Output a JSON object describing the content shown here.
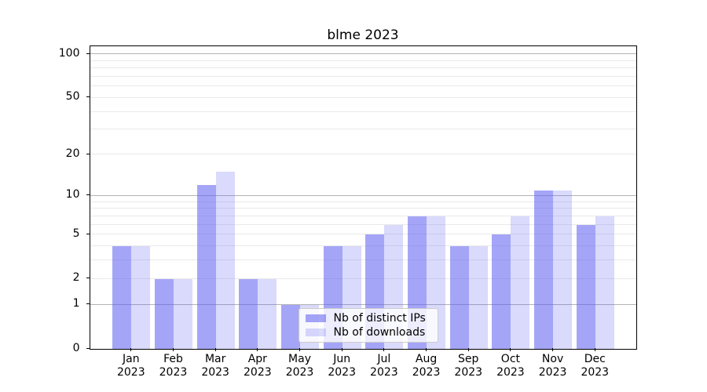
{
  "title": "blme 2023",
  "chart_data": {
    "type": "bar",
    "title": "blme 2023",
    "categories": [
      "Jan 2023",
      "Feb 2023",
      "Mar 2023",
      "Apr 2023",
      "May 2023",
      "Jun 2023",
      "Jul 2023",
      "Aug 2023",
      "Sep 2023",
      "Oct 2023",
      "Nov 2023",
      "Dec 2023"
    ],
    "series": [
      {
        "name": "Nb of distinct IPs",
        "color": "rgba(95,95,240,0.56)",
        "values": [
          4,
          2,
          12,
          2,
          1,
          4,
          5,
          7,
          4,
          5,
          11,
          6
        ]
      },
      {
        "name": "Nb of downloads",
        "color": "rgba(95,95,240,0.23)",
        "values": [
          4,
          2,
          15,
          2,
          1,
          4,
          6,
          7,
          4,
          7,
          11,
          7
        ]
      }
    ],
    "xlabel": "",
    "ylabel": "",
    "yscale": "log1p",
    "ylim": [
      0,
      113
    ],
    "y_tick_labels": [
      0,
      1,
      2,
      5,
      10,
      20,
      50,
      100
    ],
    "y_grid_major": [
      1,
      10,
      100
    ],
    "y_grid_minor": [
      2,
      3,
      4,
      5,
      6,
      7,
      8,
      9,
      20,
      30,
      40,
      50,
      60,
      70,
      80,
      90
    ],
    "grid": "horizontal",
    "legend_position": "lower center"
  },
  "colors": {
    "bar_distinct_ips": "rgba(95,95,240,0.56)",
    "bar_downloads": "rgba(95,95,240,0.23)",
    "grid_major": "#b3b3b3",
    "grid_minor": "#e9e9e9",
    "spine": "#000000",
    "legend_border": "#cccccc",
    "background": "#ffffff"
  }
}
